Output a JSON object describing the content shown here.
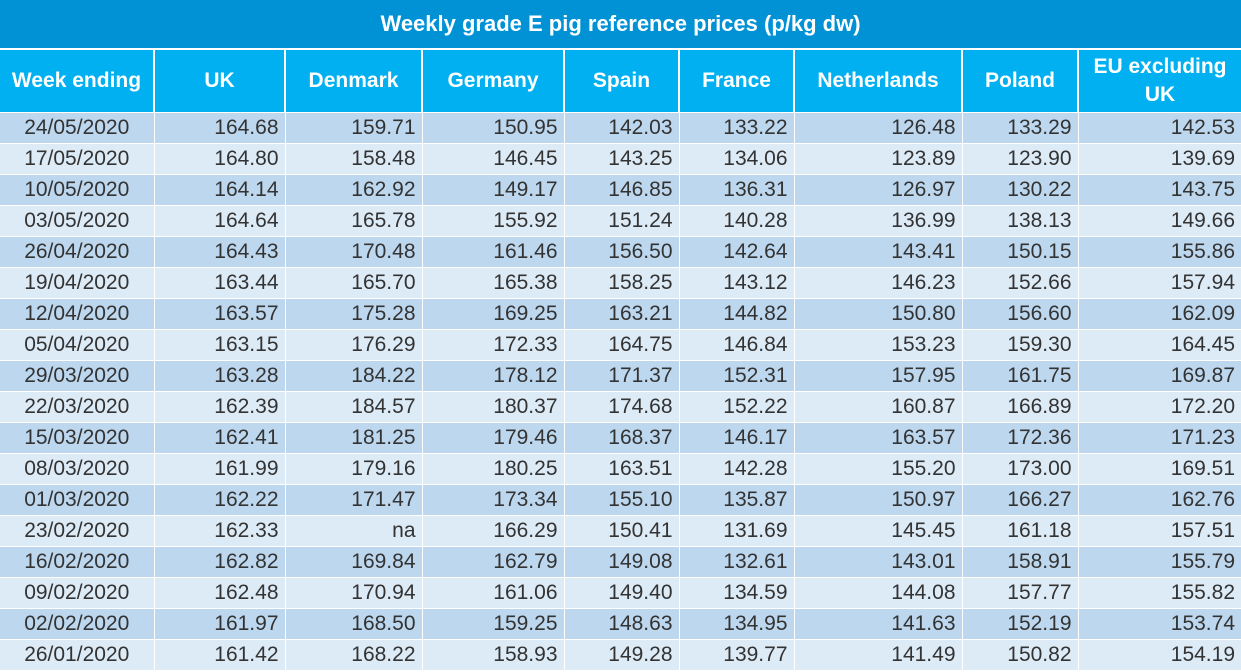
{
  "title": "Weekly grade E pig reference prices (p/kg dw)",
  "columns": [
    "Week ending",
    "UK",
    "Denmark",
    "Germany",
    "Spain",
    "France",
    "Netherlands",
    "Poland",
    "EU excluding UK"
  ],
  "rows": [
    [
      "24/05/2020",
      "164.68",
      "159.71",
      "150.95",
      "142.03",
      "133.22",
      "126.48",
      "133.29",
      "142.53"
    ],
    [
      "17/05/2020",
      "164.80",
      "158.48",
      "146.45",
      "143.25",
      "134.06",
      "123.89",
      "123.90",
      "139.69"
    ],
    [
      "10/05/2020",
      "164.14",
      "162.92",
      "149.17",
      "146.85",
      "136.31",
      "126.97",
      "130.22",
      "143.75"
    ],
    [
      "03/05/2020",
      "164.64",
      "165.78",
      "155.92",
      "151.24",
      "140.28",
      "136.99",
      "138.13",
      "149.66"
    ],
    [
      "26/04/2020",
      "164.43",
      "170.48",
      "161.46",
      "156.50",
      "142.64",
      "143.41",
      "150.15",
      "155.86"
    ],
    [
      "19/04/2020",
      "163.44",
      "165.70",
      "165.38",
      "158.25",
      "143.12",
      "146.23",
      "152.66",
      "157.94"
    ],
    [
      "12/04/2020",
      "163.57",
      "175.28",
      "169.25",
      "163.21",
      "144.82",
      "150.80",
      "156.60",
      "162.09"
    ],
    [
      "05/04/2020",
      "163.15",
      "176.29",
      "172.33",
      "164.75",
      "146.84",
      "153.23",
      "159.30",
      "164.45"
    ],
    [
      "29/03/2020",
      "163.28",
      "184.22",
      "178.12",
      "171.37",
      "152.31",
      "157.95",
      "161.75",
      "169.87"
    ],
    [
      "22/03/2020",
      "162.39",
      "184.57",
      "180.37",
      "174.68",
      "152.22",
      "160.87",
      "166.89",
      "172.20"
    ],
    [
      "15/03/2020",
      "162.41",
      "181.25",
      "179.46",
      "168.37",
      "146.17",
      "163.57",
      "172.36",
      "171.23"
    ],
    [
      "08/03/2020",
      "161.99",
      "179.16",
      "180.25",
      "163.51",
      "142.28",
      "155.20",
      "173.00",
      "169.51"
    ],
    [
      "01/03/2020",
      "162.22",
      "171.47",
      "173.34",
      "155.10",
      "135.87",
      "150.97",
      "166.27",
      "162.76"
    ],
    [
      "23/02/2020",
      "162.33",
      "na",
      "166.29",
      "150.41",
      "131.69",
      "145.45",
      "161.18",
      "157.51"
    ],
    [
      "16/02/2020",
      "162.82",
      "169.84",
      "162.79",
      "149.08",
      "132.61",
      "143.01",
      "158.91",
      "155.79"
    ],
    [
      "09/02/2020",
      "162.48",
      "170.94",
      "161.06",
      "149.40",
      "134.59",
      "144.08",
      "157.77",
      "155.82"
    ],
    [
      "02/02/2020",
      "161.97",
      "168.50",
      "159.25",
      "148.63",
      "134.95",
      "141.63",
      "152.19",
      "153.74"
    ],
    [
      "26/01/2020",
      "161.42",
      "168.22",
      "158.93",
      "149.28",
      "139.77",
      "141.49",
      "150.82",
      "154.19"
    ]
  ],
  "colors": {
    "title_bg": "#0092d5",
    "header_bg": "#00b0f0",
    "row_odd": "#bdd7ee",
    "row_even": "#ddebf7",
    "text": "#333333"
  }
}
